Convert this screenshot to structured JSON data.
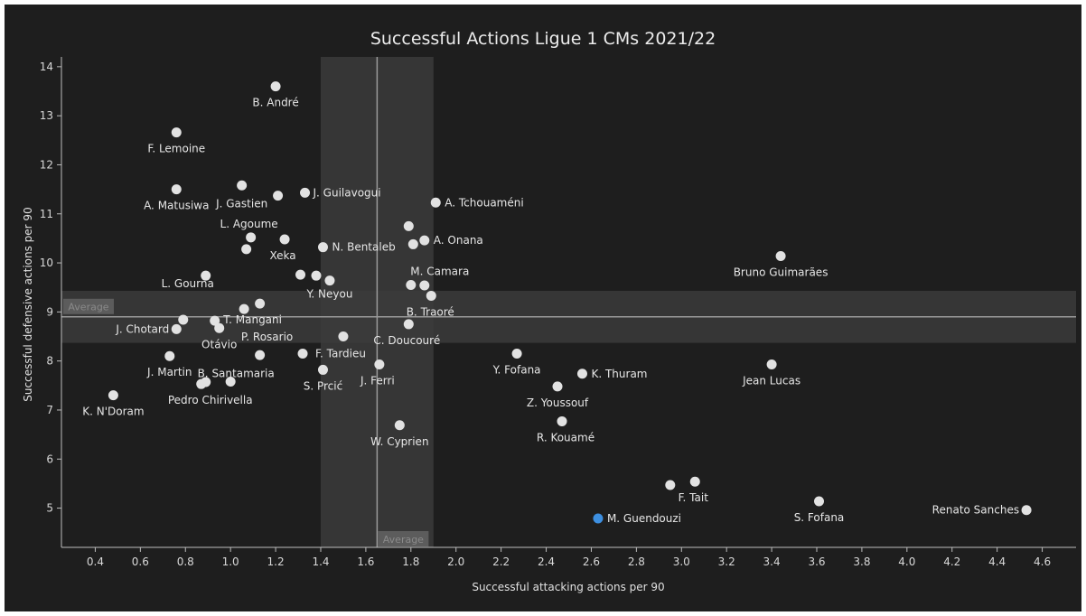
{
  "chart_data": {
    "type": "scatter",
    "title": "Successful Actions Ligue 1 CMs 2021/22",
    "xlabel": "Successful attacking actions per 90",
    "ylabel": "Successful defensive actions per 90",
    "xlim": [
      0.25,
      4.75
    ],
    "ylim": [
      4.2,
      14.2
    ],
    "xticks": [
      0.4,
      0.6,
      0.8,
      1.0,
      1.2,
      1.4,
      1.6,
      1.8,
      2.0,
      2.2,
      2.4,
      2.6,
      2.8,
      3.0,
      3.2,
      3.4,
      3.6,
      3.8,
      4.0,
      4.2,
      4.4,
      4.6
    ],
    "yticks": [
      5,
      6,
      7,
      8,
      9,
      10,
      11,
      12,
      13,
      14
    ],
    "average_label": "Average",
    "average_x": 1.65,
    "average_y": 8.9,
    "x_band": [
      1.4,
      1.9
    ],
    "y_band": [
      8.37,
      9.43
    ],
    "colors": {
      "point": "#e2e2e2",
      "highlight": "#3d8fe0",
      "band": "#3b3b3b",
      "avg_line": "#9a9a9a"
    },
    "points": [
      {
        "label": "B. André",
        "x": 1.2,
        "y": 13.6
      },
      {
        "label": "F. Lemoine",
        "x": 0.76,
        "y": 12.66
      },
      {
        "label": "A. Matusiwa",
        "x": 0.76,
        "y": 11.5
      },
      {
        "label": "J. Gastien",
        "x": 1.05,
        "y": 11.58
      },
      {
        "label": "",
        "x": 1.21,
        "y": 11.37
      },
      {
        "label": "J. Guilavogui",
        "x": 1.33,
        "y": 11.43
      },
      {
        "label": "A. Tchouaméni",
        "x": 1.91,
        "y": 11.23
      },
      {
        "label": "L. Agoume",
        "x": 1.09,
        "y": 10.52
      },
      {
        "label": "",
        "x": 1.07,
        "y": 10.28
      },
      {
        "label": "Xeka",
        "x": 1.24,
        "y": 10.48
      },
      {
        "label": "N. Bentaleb",
        "x": 1.41,
        "y": 10.32
      },
      {
        "label": "",
        "x": 1.79,
        "y": 10.75
      },
      {
        "label": "",
        "x": 1.81,
        "y": 10.38
      },
      {
        "label": "A. Onana",
        "x": 1.86,
        "y": 10.46
      },
      {
        "label": "Bruno Guimarães",
        "x": 3.44,
        "y": 10.14
      },
      {
        "label": "L. Gourna",
        "x": 0.89,
        "y": 9.74
      },
      {
        "label": "",
        "x": 1.31,
        "y": 9.76
      },
      {
        "label": "",
        "x": 1.38,
        "y": 9.74
      },
      {
        "label": "Y. Neyou",
        "x": 1.44,
        "y": 9.64
      },
      {
        "label": "M. Camara",
        "x": 1.8,
        "y": 9.55
      },
      {
        "label": "",
        "x": 1.86,
        "y": 9.54
      },
      {
        "label": "T. Mangani",
        "x": 1.13,
        "y": 9.17
      },
      {
        "label": "",
        "x": 1.06,
        "y": 9.06
      },
      {
        "label": "B. Traoré",
        "x": 1.89,
        "y": 9.33
      },
      {
        "label": "J. Chotard",
        "x": 0.76,
        "y": 8.65
      },
      {
        "label": "",
        "x": 0.79,
        "y": 8.84
      },
      {
        "label": "",
        "x": 0.93,
        "y": 8.82
      },
      {
        "label": "Otávio",
        "x": 0.95,
        "y": 8.67
      },
      {
        "label": "P. Rosario",
        "x": 1.13,
        "y": 8.12
      },
      {
        "label": "C. Doucouré",
        "x": 1.79,
        "y": 8.75
      },
      {
        "label": "F. Tardieu",
        "x": 1.32,
        "y": 8.15
      },
      {
        "label": "",
        "x": 1.5,
        "y": 8.5
      },
      {
        "label": "J. Martin",
        "x": 0.73,
        "y": 8.1
      },
      {
        "label": "B. Santamaria",
        "x": 1.0,
        "y": 7.58
      },
      {
        "label": "S. Prcić",
        "x": 1.41,
        "y": 7.82
      },
      {
        "label": "J. Ferri",
        "x": 1.66,
        "y": 7.93
      },
      {
        "label": "Pedro Chirivella",
        "x": 0.87,
        "y": 7.53
      },
      {
        "label": "",
        "x": 0.89,
        "y": 7.57
      },
      {
        "label": "K. N'Doram",
        "x": 0.48,
        "y": 7.3
      },
      {
        "label": "Y. Fofana",
        "x": 2.27,
        "y": 8.15
      },
      {
        "label": "K. Thuram",
        "x": 2.56,
        "y": 7.74
      },
      {
        "label": "Jean Lucas",
        "x": 3.4,
        "y": 7.93
      },
      {
        "label": "Z. Youssouf",
        "x": 2.45,
        "y": 7.48
      },
      {
        "label": "R. Kouamé",
        "x": 2.47,
        "y": 6.77
      },
      {
        "label": "W. Cyprien",
        "x": 1.75,
        "y": 6.69
      },
      {
        "label": "F. Tait",
        "x": 3.06,
        "y": 5.54
      },
      {
        "label": "",
        "x": 2.95,
        "y": 5.47
      },
      {
        "label": "S. Fofana",
        "x": 3.61,
        "y": 5.14
      },
      {
        "label": "Renato Sanches",
        "x": 4.53,
        "y": 4.96
      },
      {
        "label": "M. Guendouzi",
        "x": 2.63,
        "y": 4.79,
        "highlight": true
      }
    ]
  }
}
